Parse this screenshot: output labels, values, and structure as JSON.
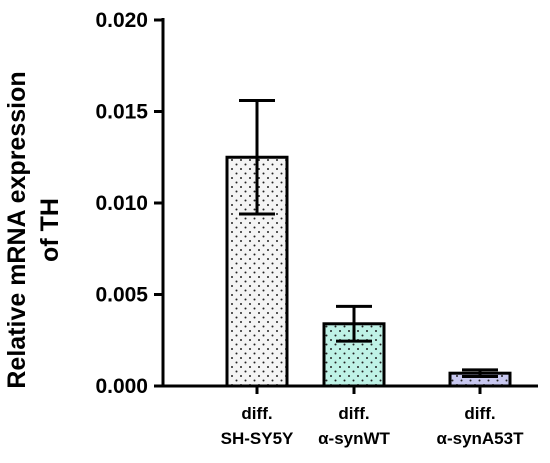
{
  "chart_data": {
    "type": "bar",
    "ylabel_line1": "Relative mRNA expression",
    "ylabel_line2": "of TH",
    "ylim": [
      0,
      0.02
    ],
    "yticks": [
      "0.000",
      "0.005",
      "0.010",
      "0.015",
      "0.020"
    ],
    "ytick_values": [
      0,
      0.005,
      0.01,
      0.015,
      0.02
    ],
    "categories": [
      {
        "line1": "diff.",
        "line2": "SH-SY5Y"
      },
      {
        "line1": "diff.",
        "line2": "α-synWT"
      },
      {
        "line1": "diff.",
        "line2": "α-synA53T"
      }
    ],
    "values": [
      0.0125,
      0.0034,
      0.0007
    ],
    "error": [
      0.0031,
      0.00095,
      0.00018
    ],
    "bar_fill_colors": [
      "#f4f4f4",
      "#bff2e6",
      "#c8c8f0"
    ],
    "bar_pattern": "dotted",
    "grid": false,
    "legend": "none"
  }
}
